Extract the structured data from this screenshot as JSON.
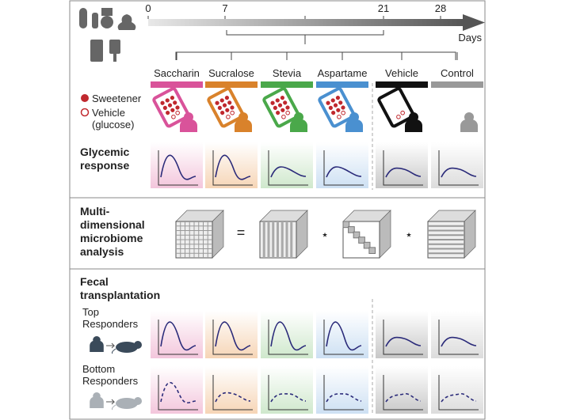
{
  "timeline": {
    "ticks": [
      0,
      7,
      21,
      28
    ],
    "unit": "Days"
  },
  "groups": [
    "Saccharin",
    "Sucralose",
    "Stevia",
    "Aspartame",
    "Vehicle",
    "Control"
  ],
  "legend": {
    "sweetener": "Sweetener",
    "vehicle": [
      "Vehicle",
      "(glucose)"
    ]
  },
  "sections": {
    "glycemic": [
      "Glycemic",
      "response"
    ],
    "microbiome": [
      "Multi-",
      "dimensional",
      "microbiome",
      "analysis"
    ],
    "fecal": [
      "Fecal",
      "transplantation"
    ]
  },
  "rows": {
    "top": [
      "Top",
      "Responders"
    ],
    "bottom": [
      "Bottom",
      "Responders"
    ]
  },
  "operators": [
    "=",
    "⋆",
    "⋆"
  ]
}
